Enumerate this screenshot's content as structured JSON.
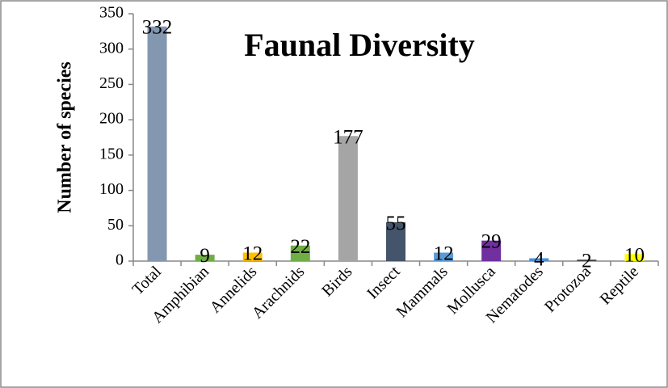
{
  "chart_data": {
    "type": "bar",
    "title": "Faunal Diversity",
    "y_label": "Number of species",
    "categories": [
      "Total",
      "Amphibian",
      "Annelids",
      "Arachnids",
      "Birds",
      "Insect",
      "Mammals",
      "Mollusca",
      "Nematodes",
      "Protozoa",
      "Reptile"
    ],
    "values": [
      332,
      9,
      12,
      22,
      177,
      55,
      12,
      29,
      4,
      2,
      10
    ],
    "colors": [
      "#8497b0",
      "#70ad47",
      "#ffc000",
      "#70ad47",
      "#a5a5a5",
      "#44546a",
      "#5b9bd5",
      "#7030a0",
      "#4a8fd6",
      "#404040",
      "#ffff00"
    ],
    "ylim": [
      0,
      350
    ],
    "yticks": [
      0,
      50,
      100,
      150,
      200,
      250,
      300,
      350
    ],
    "grid": false
  }
}
